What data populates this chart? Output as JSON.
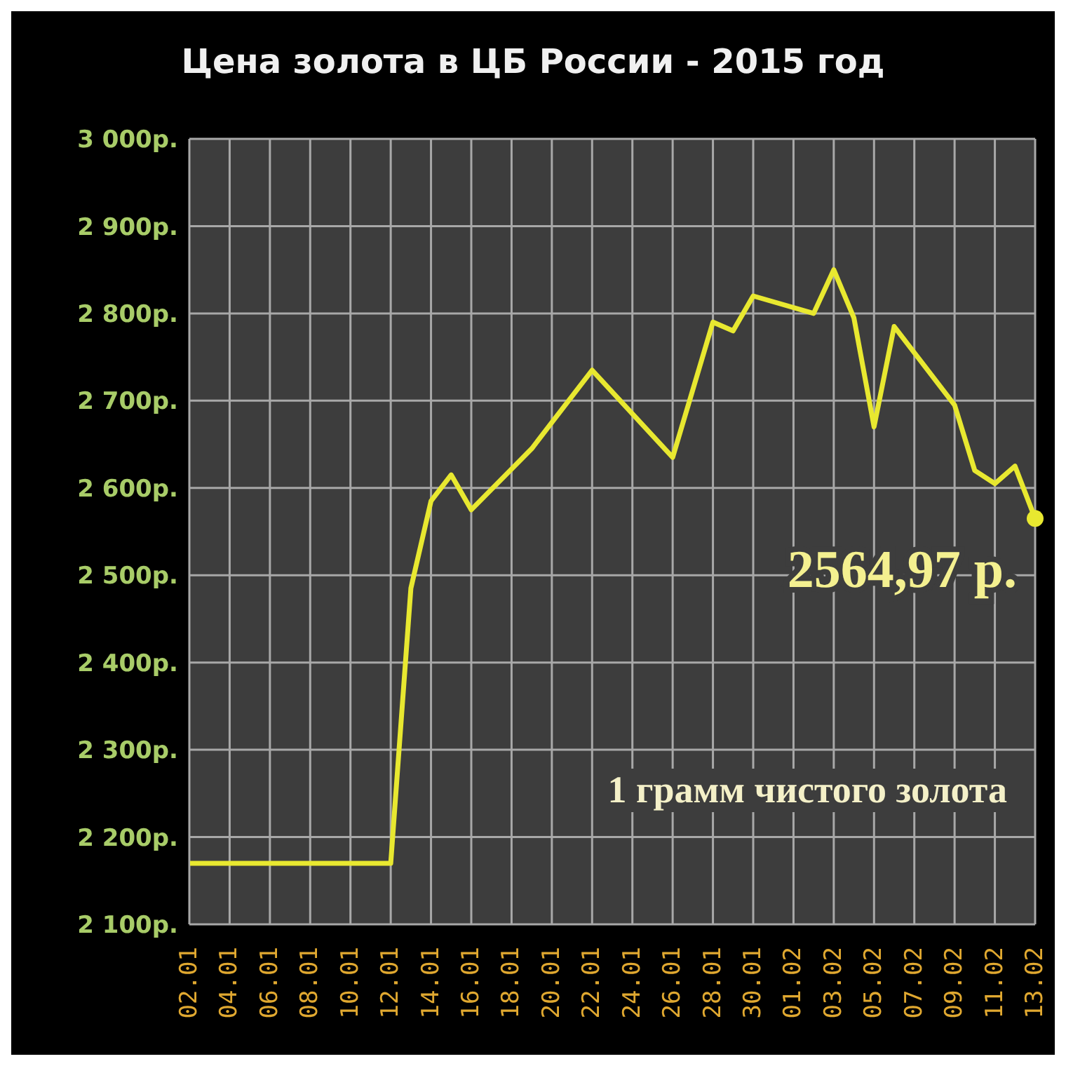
{
  "chart_data": {
    "type": "line",
    "title": "Цена золота в ЦБ России - 2015 год",
    "x": [
      "2015-01-02",
      "2015-01-12",
      "2015-01-13",
      "2015-01-14",
      "2015-01-15",
      "2015-01-16",
      "2015-01-19",
      "2015-01-20",
      "2015-01-22",
      "2015-01-26",
      "2015-01-28",
      "2015-01-29",
      "2015-01-30",
      "2015-02-02",
      "2015-02-03",
      "2015-02-04",
      "2015-02-05",
      "2015-02-06",
      "2015-02-09",
      "2015-02-10",
      "2015-02-11",
      "2015-02-12",
      "2015-02-13"
    ],
    "series": [
      {
        "color": "#e8e830",
        "values": [
          2170,
          2170,
          2485,
          2585,
          2615,
          2575,
          2645,
          2675,
          2735,
          2635,
          2790,
          2780,
          2820,
          2800,
          2850,
          2795,
          2670,
          2785,
          2695,
          2620,
          2605,
          2625,
          2564.97
        ]
      }
    ],
    "xlim": [
      "2015-01-02",
      "2015-02-13"
    ],
    "xticks": [
      {
        "value": "2015-01-02",
        "label": "02.01"
      },
      {
        "value": "2015-01-04",
        "label": "04.01"
      },
      {
        "value": "2015-01-06",
        "label": "06.01"
      },
      {
        "value": "2015-01-08",
        "label": "08.01"
      },
      {
        "value": "2015-01-10",
        "label": "10.01"
      },
      {
        "value": "2015-01-12",
        "label": "12.01"
      },
      {
        "value": "2015-01-14",
        "label": "14.01"
      },
      {
        "value": "2015-01-16",
        "label": "16.01"
      },
      {
        "value": "2015-01-18",
        "label": "18.01"
      },
      {
        "value": "2015-01-20",
        "label": "20.01"
      },
      {
        "value": "2015-01-22",
        "label": "22.01"
      },
      {
        "value": "2015-01-24",
        "label": "24.01"
      },
      {
        "value": "2015-01-26",
        "label": "26.01"
      },
      {
        "value": "2015-01-28",
        "label": "28.01"
      },
      {
        "value": "2015-01-30",
        "label": "30.01"
      },
      {
        "value": "2015-02-01",
        "label": "01.02"
      },
      {
        "value": "2015-02-03",
        "label": "03.02"
      },
      {
        "value": "2015-02-05",
        "label": "05.02"
      },
      {
        "value": "2015-02-07",
        "label": "07.02"
      },
      {
        "value": "2015-02-09",
        "label": "09.02"
      },
      {
        "value": "2015-02-11",
        "label": "11.02"
      },
      {
        "value": "2015-02-13",
        "label": "13.02"
      }
    ],
    "ylim": [
      2100,
      3000
    ],
    "yticks": [
      {
        "value": 2100,
        "label": "2 100р."
      },
      {
        "value": 2200,
        "label": "2 200р."
      },
      {
        "value": 2300,
        "label": "2 300р."
      },
      {
        "value": 2400,
        "label": "2 400р."
      },
      {
        "value": 2500,
        "label": "2 500р."
      },
      {
        "value": 2600,
        "label": "2 600р."
      },
      {
        "value": 2700,
        "label": "2 700р."
      },
      {
        "value": 2800,
        "label": "2 800р."
      },
      {
        "value": 2900,
        "label": "2 900р."
      },
      {
        "value": 3000,
        "label": "3 000р."
      }
    ],
    "grid": true,
    "marker": "none",
    "line_style": "solid",
    "legend": false,
    "annotations": [
      {
        "text": "2564,97 р.",
        "x": "2015-02-13",
        "y": 2564.97
      },
      "1 грамм чистого золота"
    ]
  }
}
